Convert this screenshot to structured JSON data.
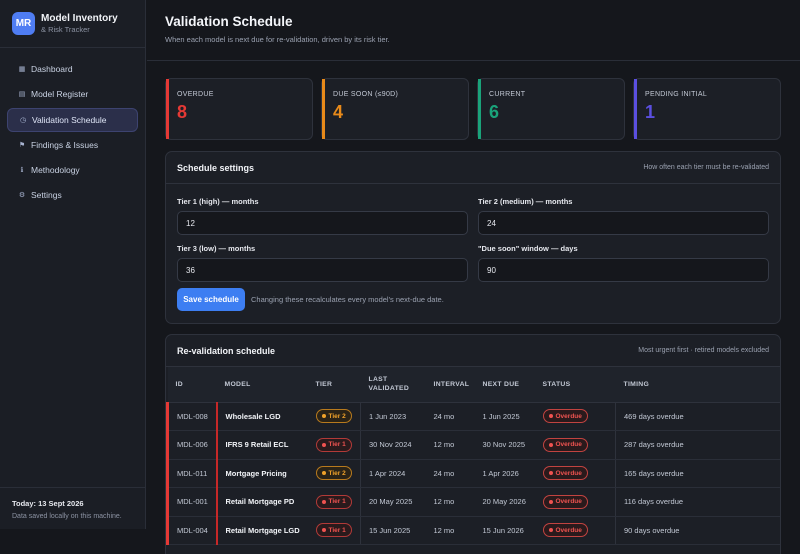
{
  "brand": {
    "logo": "MR",
    "title": "Model Inventory",
    "subtitle": "& Risk Tracker"
  },
  "nav": [
    {
      "label": "Dashboard",
      "icon": "grid-icon",
      "glyph": "▦"
    },
    {
      "label": "Model Register",
      "icon": "list-icon",
      "glyph": "▤"
    },
    {
      "label": "Validation Schedule",
      "icon": "clock-icon",
      "glyph": "◷",
      "active": true
    },
    {
      "label": "Findings & Issues",
      "icon": "flag-icon",
      "glyph": "⚑"
    },
    {
      "label": "Methodology",
      "icon": "info-icon",
      "glyph": "ℹ"
    },
    {
      "label": "Settings",
      "icon": "gear-icon",
      "glyph": "⚙"
    }
  ],
  "footer": {
    "today": "Today: 13 Sept 2026",
    "saved": "Data saved locally on this machine."
  },
  "header": {
    "title": "Validation Schedule",
    "subtitle": "When each model is next due for re-validation, driven by its risk tier."
  },
  "stats": [
    {
      "label": "OVERDUE",
      "value": "8",
      "color": "#e53935"
    },
    {
      "label": "DUE SOON (≤90D)",
      "value": "4",
      "color": "#e88a1a"
    },
    {
      "label": "CURRENT",
      "value": "6",
      "color": "#1aa37a"
    },
    {
      "label": "PENDING INITIAL",
      "value": "1",
      "color": "#5b4fe0"
    }
  ],
  "settings": {
    "title": "Schedule settings",
    "note": "How often each tier must be re-validated",
    "tier1_label": "Tier 1 (high) — months",
    "tier1_value": "12",
    "tier2_label": "Tier 2 (medium) — months",
    "tier2_value": "24",
    "tier3_label": "Tier 3 (low) — months",
    "tier3_value": "36",
    "window_label": "\"Due soon\" window — days",
    "window_value": "90",
    "save_label": "Save schedule",
    "save_hint": "Changing these recalculates every model's next-due date."
  },
  "schedule": {
    "title": "Re-validation schedule",
    "note": "Most urgent first · retired models excluded",
    "columns": [
      "ID",
      "MODEL",
      "TIER",
      "LAST VALIDATED",
      "INTERVAL",
      "NEXT DUE",
      "STATUS",
      "TIMING"
    ],
    "rows": [
      {
        "id": "MDL-008",
        "model": "Wholesale LGD",
        "tier": "Tier 2",
        "tier_level": 2,
        "last": "1 Jun 2023",
        "interval": "24 mo",
        "next": "1 Jun 2025",
        "status": "Overdue",
        "timing": "469 days overdue"
      },
      {
        "id": "MDL-006",
        "model": "IFRS 9 Retail ECL",
        "tier": "Tier 1",
        "tier_level": 1,
        "last": "30 Nov 2024",
        "interval": "12 mo",
        "next": "30 Nov 2025",
        "status": "Overdue",
        "timing": "287 days overdue"
      },
      {
        "id": "MDL-011",
        "model": "Mortgage Pricing",
        "tier": "Tier 2",
        "tier_level": 2,
        "last": "1 Apr 2024",
        "interval": "24 mo",
        "next": "1 Apr 2026",
        "status": "Overdue",
        "timing": "165 days overdue"
      },
      {
        "id": "MDL-001",
        "model": "Retail Mortgage PD",
        "tier": "Tier 1",
        "tier_level": 1,
        "last": "20 May 2025",
        "interval": "12 mo",
        "next": "20 May 2026",
        "status": "Overdue",
        "timing": "116 days overdue"
      },
      {
        "id": "MDL-004",
        "model": "Retail Mortgage LGD",
        "tier": "Tier 1",
        "tier_level": 1,
        "last": "15 Jun 2025",
        "interval": "12 mo",
        "next": "15 Jun 2026",
        "status": "Overdue",
        "timing": "90 days overdue"
      }
    ]
  }
}
